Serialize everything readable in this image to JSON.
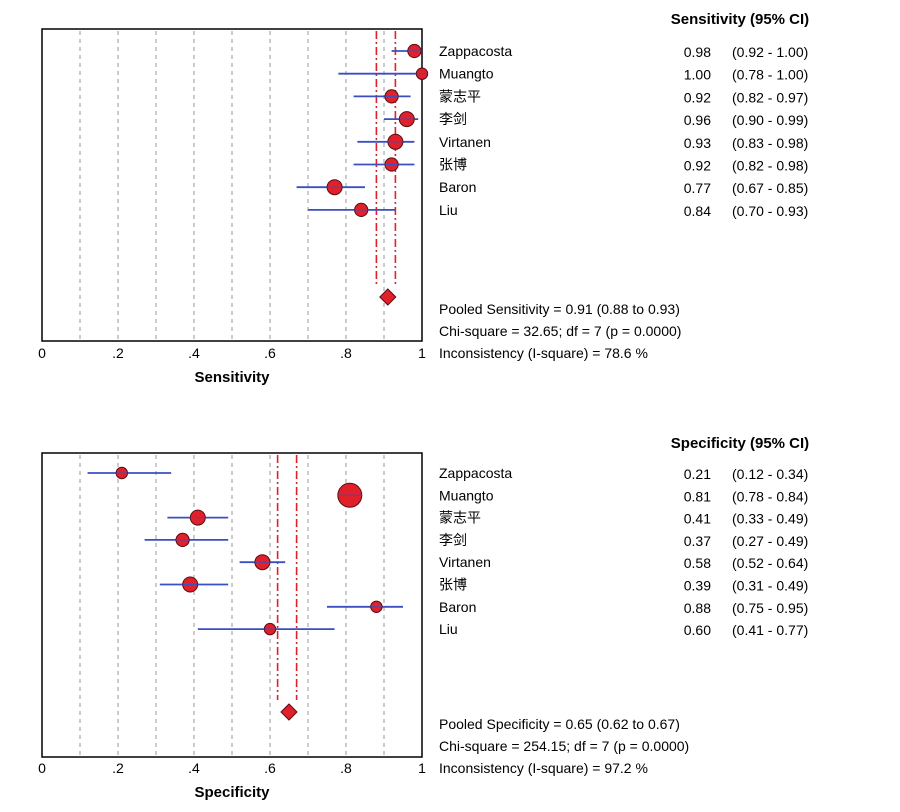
{
  "chart_data": [
    {
      "type": "forest",
      "xlabel": "Sensitivity",
      "xlim": [
        0,
        1
      ],
      "xticks": [
        "0",
        ".2",
        ".4",
        ".6",
        ".8",
        "1"
      ],
      "column_header": "Sensitivity (95% CI)",
      "studies": [
        {
          "name": "Zappacosta",
          "estimate": 0.98,
          "low": 0.92,
          "high": 1.0,
          "estimate_text": "0.98",
          "ci_text": "(0.92 - 1.00)",
          "weight": 4
        },
        {
          "name": "Muangto",
          "estimate": 1.0,
          "low": 0.78,
          "high": 1.0,
          "estimate_text": "1.00",
          "ci_text": "(0.78 - 1.00)",
          "weight": 3
        },
        {
          "name": "蒙志平",
          "estimate": 0.92,
          "low": 0.82,
          "high": 0.97,
          "estimate_text": "0.92",
          "ci_text": "(0.82 - 0.97)",
          "weight": 4
        },
        {
          "name": "李剑",
          "estimate": 0.96,
          "low": 0.9,
          "high": 0.99,
          "estimate_text": "0.96",
          "ci_text": "(0.90 - 0.99)",
          "weight": 5
        },
        {
          "name": "Virtanen",
          "estimate": 0.93,
          "low": 0.83,
          "high": 0.98,
          "estimate_text": "0.93",
          "ci_text": "(0.83 - 0.98)",
          "weight": 5
        },
        {
          "name": "张博",
          "estimate": 0.92,
          "low": 0.82,
          "high": 0.98,
          "estimate_text": "0.92",
          "ci_text": "(0.82 - 0.98)",
          "weight": 4
        },
        {
          "name": "Baron",
          "estimate": 0.77,
          "low": 0.67,
          "high": 0.85,
          "estimate_text": "0.77",
          "ci_text": "(0.67 - 0.85)",
          "weight": 5
        },
        {
          "name": "Liu",
          "estimate": 0.84,
          "low": 0.7,
          "high": 0.93,
          "estimate_text": "0.84",
          "ci_text": "(0.70 - 0.93)",
          "weight": 4
        }
      ],
      "pooled": {
        "estimate": 0.91,
        "low": 0.88,
        "high": 0.93
      },
      "summary_lines": [
        "Pooled Sensitivity = 0.91 (0.88 to 0.93)",
        "Chi-square = 32.65; df =  7 (p = 0.0000)",
        "Inconsistency (I-square) = 78.6 %"
      ],
      "grid": true,
      "colors": {
        "marker": "#e0202a",
        "ci_line": "#3a4fc0",
        "pooled_line": "#e0202a",
        "grid": "#999999"
      }
    },
    {
      "type": "forest",
      "xlabel": "Specificity",
      "xlim": [
        0,
        1
      ],
      "xticks": [
        "0",
        ".2",
        ".4",
        ".6",
        ".8",
        "1"
      ],
      "column_header": "Specificity (95% CI)",
      "studies": [
        {
          "name": "Zappacosta",
          "estimate": 0.21,
          "low": 0.12,
          "high": 0.34,
          "estimate_text": "0.21",
          "ci_text": "(0.12 - 0.34)",
          "weight": 3
        },
        {
          "name": "Muangto",
          "estimate": 0.81,
          "low": 0.78,
          "high": 0.84,
          "estimate_text": "0.81",
          "ci_text": "(0.78 - 0.84)",
          "weight": 10
        },
        {
          "name": "蒙志平",
          "estimate": 0.41,
          "low": 0.33,
          "high": 0.49,
          "estimate_text": "0.41",
          "ci_text": "(0.33 - 0.49)",
          "weight": 5
        },
        {
          "name": "李剑",
          "estimate": 0.37,
          "low": 0.27,
          "high": 0.49,
          "estimate_text": "0.37",
          "ci_text": "(0.27 - 0.49)",
          "weight": 4
        },
        {
          "name": "Virtanen",
          "estimate": 0.58,
          "low": 0.52,
          "high": 0.64,
          "estimate_text": "0.58",
          "ci_text": "(0.52 - 0.64)",
          "weight": 5
        },
        {
          "name": "张博",
          "estimate": 0.39,
          "low": 0.31,
          "high": 0.49,
          "estimate_text": "0.39",
          "ci_text": "(0.31 - 0.49)",
          "weight": 5
        },
        {
          "name": "Baron",
          "estimate": 0.88,
          "low": 0.75,
          "high": 0.95,
          "estimate_text": "0.88",
          "ci_text": "(0.75 - 0.95)",
          "weight": 3
        },
        {
          "name": "Liu",
          "estimate": 0.6,
          "low": 0.41,
          "high": 0.77,
          "estimate_text": "0.60",
          "ci_text": "(0.41 - 0.77)",
          "weight": 3
        }
      ],
      "pooled": {
        "estimate": 0.65,
        "low": 0.62,
        "high": 0.67
      },
      "summary_lines": [
        "Pooled Specificity = 0.65 (0.62 to 0.67)",
        "Chi-square = 254.15; df =  7 (p = 0.0000)",
        "Inconsistency (I-square) = 97.2 %"
      ],
      "grid": true,
      "colors": {
        "marker": "#e0202a",
        "ci_line": "#3a4fc0",
        "pooled_line": "#e0202a",
        "grid": "#999999"
      }
    }
  ]
}
